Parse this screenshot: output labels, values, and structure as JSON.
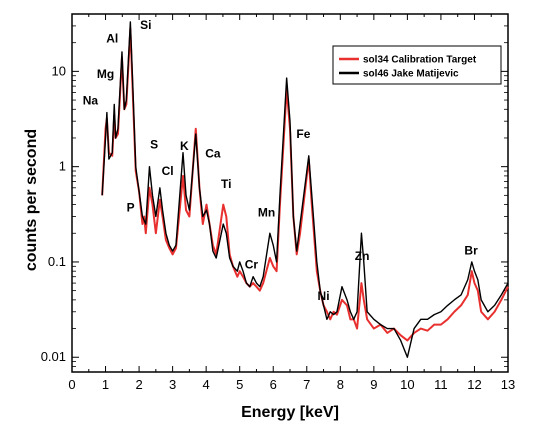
{
  "chart_data": {
    "type": "line",
    "xlabel": "Energy [keV]",
    "ylabel": "counts per second",
    "xlim": [
      0,
      13
    ],
    "ylim": [
      0.007,
      40
    ],
    "yscale": "log",
    "x_ticks": [
      0,
      1,
      2,
      3,
      4,
      5,
      6,
      7,
      8,
      9,
      10,
      11,
      12,
      13
    ],
    "y_ticks": [
      0.01,
      0.1,
      1,
      10
    ],
    "y_tick_labels": [
      "0.01",
      "0.1",
      "1",
      "10"
    ],
    "grid": false,
    "legend_position": "top-right",
    "series": [
      {
        "name": "sol34 Calibration Target",
        "color": "#e8302f",
        "points": [
          [
            0.9,
            0.5
          ],
          [
            1.0,
            2.5
          ],
          [
            1.04,
            3.2
          ],
          [
            1.1,
            1.4
          ],
          [
            1.2,
            1.3
          ],
          [
            1.26,
            3.5
          ],
          [
            1.3,
            2.0
          ],
          [
            1.37,
            2.2
          ],
          [
            1.49,
            14
          ],
          [
            1.56,
            4
          ],
          [
            1.62,
            4.5
          ],
          [
            1.74,
            28
          ],
          [
            1.82,
            5
          ],
          [
            1.9,
            0.9
          ],
          [
            2.0,
            0.55
          ],
          [
            2.1,
            0.25
          ],
          [
            2.15,
            0.3
          ],
          [
            2.2,
            0.2
          ],
          [
            2.31,
            0.6
          ],
          [
            2.4,
            0.4
          ],
          [
            2.5,
            0.2
          ],
          [
            2.62,
            0.45
          ],
          [
            2.7,
            0.3
          ],
          [
            2.8,
            0.17
          ],
          [
            2.9,
            0.14
          ],
          [
            3.0,
            0.12
          ],
          [
            3.1,
            0.14
          ],
          [
            3.31,
            0.8
          ],
          [
            3.4,
            0.35
          ],
          [
            3.5,
            0.3
          ],
          [
            3.69,
            2.5
          ],
          [
            3.8,
            0.6
          ],
          [
            3.9,
            0.25
          ],
          [
            4.01,
            0.4
          ],
          [
            4.1,
            0.25
          ],
          [
            4.2,
            0.15
          ],
          [
            4.3,
            0.12
          ],
          [
            4.51,
            0.4
          ],
          [
            4.6,
            0.3
          ],
          [
            4.7,
            0.12
          ],
          [
            4.8,
            0.09
          ],
          [
            4.93,
            0.07
          ],
          [
            5.0,
            0.08
          ],
          [
            5.1,
            0.07
          ],
          [
            5.2,
            0.06
          ],
          [
            5.3,
            0.055
          ],
          [
            5.4,
            0.06
          ],
          [
            5.5,
            0.055
          ],
          [
            5.6,
            0.05
          ],
          [
            5.7,
            0.06
          ],
          [
            5.9,
            0.11
          ],
          [
            6.0,
            0.09
          ],
          [
            6.1,
            0.08
          ],
          [
            6.2,
            0.4
          ],
          [
            6.4,
            6.5
          ],
          [
            6.5,
            2.5
          ],
          [
            6.6,
            0.3
          ],
          [
            6.7,
            0.12
          ],
          [
            6.8,
            0.2
          ],
          [
            7.06,
            1.2
          ],
          [
            7.15,
            0.4
          ],
          [
            7.3,
            0.08
          ],
          [
            7.4,
            0.05
          ],
          [
            7.5,
            0.035
          ],
          [
            7.6,
            0.03
          ],
          [
            7.7,
            0.025
          ],
          [
            7.8,
            0.03
          ],
          [
            7.9,
            0.028
          ],
          [
            8.05,
            0.04
          ],
          [
            8.2,
            0.035
          ],
          [
            8.3,
            0.025
          ],
          [
            8.4,
            0.025
          ],
          [
            8.5,
            0.02
          ],
          [
            8.63,
            0.06
          ],
          [
            8.7,
            0.04
          ],
          [
            8.8,
            0.025
          ],
          [
            9.0,
            0.02
          ],
          [
            9.2,
            0.022
          ],
          [
            9.4,
            0.018
          ],
          [
            9.6,
            0.02
          ],
          [
            9.8,
            0.017
          ],
          [
            10.0,
            0.015
          ],
          [
            10.2,
            0.018
          ],
          [
            10.4,
            0.02
          ],
          [
            10.6,
            0.019
          ],
          [
            10.8,
            0.022
          ],
          [
            11.0,
            0.022
          ],
          [
            11.2,
            0.025
          ],
          [
            11.4,
            0.03
          ],
          [
            11.6,
            0.035
          ],
          [
            11.8,
            0.045
          ],
          [
            11.92,
            0.08
          ],
          [
            12.0,
            0.06
          ],
          [
            12.1,
            0.05
          ],
          [
            12.2,
            0.03
          ],
          [
            12.4,
            0.025
          ],
          [
            12.6,
            0.03
          ],
          [
            12.8,
            0.04
          ],
          [
            13.0,
            0.055
          ]
        ]
      },
      {
        "name": "sol46 Jake Matijevic",
        "color": "#000000",
        "points": [
          [
            0.9,
            0.5
          ],
          [
            1.0,
            2.0
          ],
          [
            1.04,
            3.7
          ],
          [
            1.1,
            1.2
          ],
          [
            1.2,
            1.4
          ],
          [
            1.26,
            4.5
          ],
          [
            1.3,
            2.0
          ],
          [
            1.37,
            2.5
          ],
          [
            1.49,
            16
          ],
          [
            1.56,
            4
          ],
          [
            1.62,
            5
          ],
          [
            1.74,
            33
          ],
          [
            1.82,
            6
          ],
          [
            1.9,
            1.0
          ],
          [
            2.0,
            0.55
          ],
          [
            2.1,
            0.3
          ],
          [
            2.2,
            0.25
          ],
          [
            2.31,
            1.0
          ],
          [
            2.4,
            0.5
          ],
          [
            2.5,
            0.3
          ],
          [
            2.62,
            0.6
          ],
          [
            2.7,
            0.35
          ],
          [
            2.8,
            0.2
          ],
          [
            2.9,
            0.15
          ],
          [
            3.0,
            0.13
          ],
          [
            3.1,
            0.15
          ],
          [
            3.31,
            1.4
          ],
          [
            3.4,
            0.5
          ],
          [
            3.5,
            0.35
          ],
          [
            3.69,
            2.2
          ],
          [
            3.8,
            0.6
          ],
          [
            3.9,
            0.3
          ],
          [
            4.01,
            0.35
          ],
          [
            4.1,
            0.25
          ],
          [
            4.2,
            0.13
          ],
          [
            4.3,
            0.11
          ],
          [
            4.51,
            0.25
          ],
          [
            4.6,
            0.2
          ],
          [
            4.7,
            0.11
          ],
          [
            4.8,
            0.09
          ],
          [
            4.93,
            0.08
          ],
          [
            5.0,
            0.1
          ],
          [
            5.1,
            0.08
          ],
          [
            5.2,
            0.06
          ],
          [
            5.3,
            0.055
          ],
          [
            5.4,
            0.07
          ],
          [
            5.5,
            0.06
          ],
          [
            5.6,
            0.055
          ],
          [
            5.7,
            0.07
          ],
          [
            5.9,
            0.2
          ],
          [
            6.0,
            0.15
          ],
          [
            6.1,
            0.1
          ],
          [
            6.2,
            0.5
          ],
          [
            6.4,
            8.5
          ],
          [
            6.5,
            3
          ],
          [
            6.6,
            0.3
          ],
          [
            6.7,
            0.13
          ],
          [
            6.8,
            0.25
          ],
          [
            7.06,
            1.3
          ],
          [
            7.15,
            0.5
          ],
          [
            7.3,
            0.1
          ],
          [
            7.4,
            0.05
          ],
          [
            7.5,
            0.035
          ],
          [
            7.6,
            0.025
          ],
          [
            7.7,
            0.03
          ],
          [
            7.8,
            0.028
          ],
          [
            7.9,
            0.03
          ],
          [
            8.05,
            0.055
          ],
          [
            8.2,
            0.04
          ],
          [
            8.3,
            0.03
          ],
          [
            8.4,
            0.025
          ],
          [
            8.5,
            0.03
          ],
          [
            8.63,
            0.2
          ],
          [
            8.7,
            0.1
          ],
          [
            8.8,
            0.03
          ],
          [
            9.0,
            0.025
          ],
          [
            9.2,
            0.022
          ],
          [
            9.4,
            0.02
          ],
          [
            9.6,
            0.02
          ],
          [
            9.8,
            0.015
          ],
          [
            10.0,
            0.01
          ],
          [
            10.2,
            0.02
          ],
          [
            10.4,
            0.025
          ],
          [
            10.6,
            0.025
          ],
          [
            10.8,
            0.028
          ],
          [
            11.0,
            0.03
          ],
          [
            11.2,
            0.035
          ],
          [
            11.4,
            0.04
          ],
          [
            11.6,
            0.045
          ],
          [
            11.8,
            0.065
          ],
          [
            11.92,
            0.1
          ],
          [
            12.0,
            0.08
          ],
          [
            12.1,
            0.065
          ],
          [
            12.2,
            0.04
          ],
          [
            12.4,
            0.03
          ],
          [
            12.6,
            0.035
          ],
          [
            12.8,
            0.045
          ],
          [
            13.0,
            0.06
          ]
        ]
      }
    ],
    "annotations": [
      {
        "text": "Na",
        "x": 0.55,
        "y": 4.5
      },
      {
        "text": "Mg",
        "x": 1.0,
        "y": 8.5
      },
      {
        "text": "Al",
        "x": 1.2,
        "y": 20
      },
      {
        "text": "Si",
        "x": 2.2,
        "y": 28
      },
      {
        "text": "S",
        "x": 2.45,
        "y": 1.55
      },
      {
        "text": "Cl",
        "x": 2.85,
        "y": 0.82
      },
      {
        "text": "P",
        "x": 1.75,
        "y": 0.34
      },
      {
        "text": "K",
        "x": 3.35,
        "y": 1.5
      },
      {
        "text": "Ca",
        "x": 4.2,
        "y": 1.25
      },
      {
        "text": "Ti",
        "x": 4.6,
        "y": 0.6
      },
      {
        "text": "Mn",
        "x": 5.8,
        "y": 0.3
      },
      {
        "text": "Fe",
        "x": 6.9,
        "y": 2.0
      },
      {
        "text": "Cr",
        "x": 5.35,
        "y": 0.085
      },
      {
        "text": "Ni",
        "x": 7.5,
        "y": 0.04
      },
      {
        "text": "Zn",
        "x": 8.65,
        "y": 0.105
      },
      {
        "text": "Br",
        "x": 11.9,
        "y": 0.12
      }
    ]
  }
}
